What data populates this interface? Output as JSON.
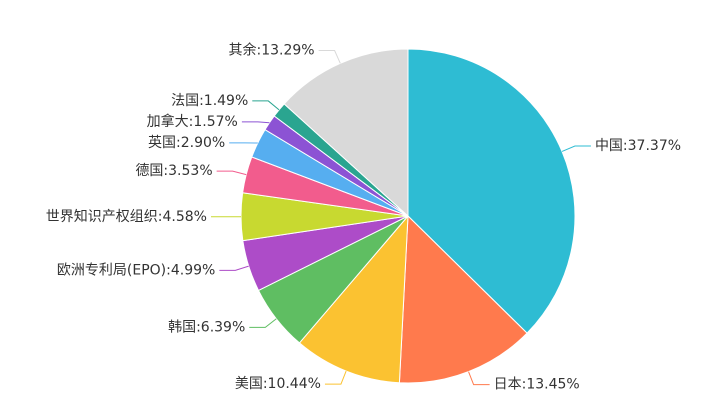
{
  "chart_data": {
    "type": "pie",
    "categories": [
      "中国",
      "日本",
      "美国",
      "韩国",
      "欧洲专利局(EPO)",
      "世界知识产权组织",
      "德国",
      "英国",
      "加拿大",
      "法国",
      "其余"
    ],
    "values": [
      37.37,
      13.45,
      10.44,
      6.39,
      4.99,
      4.58,
      3.53,
      2.9,
      1.57,
      1.49,
      13.29
    ],
    "value_labels": [
      "中国:37.37%",
      "日本:13.45%",
      "美国:10.44%",
      "韩国:6.39%",
      "欧洲专利局(EPO):4.99%",
      "世界知识产权组织:4.58%",
      "德国:3.53%",
      "英国:2.90%",
      "加拿大:1.57%",
      "法国:1.49%",
      "其余:13.29%"
    ],
    "colors": [
      "#2ebcd3",
      "#ff7a4d",
      "#fbc231",
      "#5fbe62",
      "#ad4cc8",
      "#c8d930",
      "#f25c8d",
      "#56aef0",
      "#8c53d4",
      "#2aa590",
      "#d9d9d9"
    ]
  }
}
